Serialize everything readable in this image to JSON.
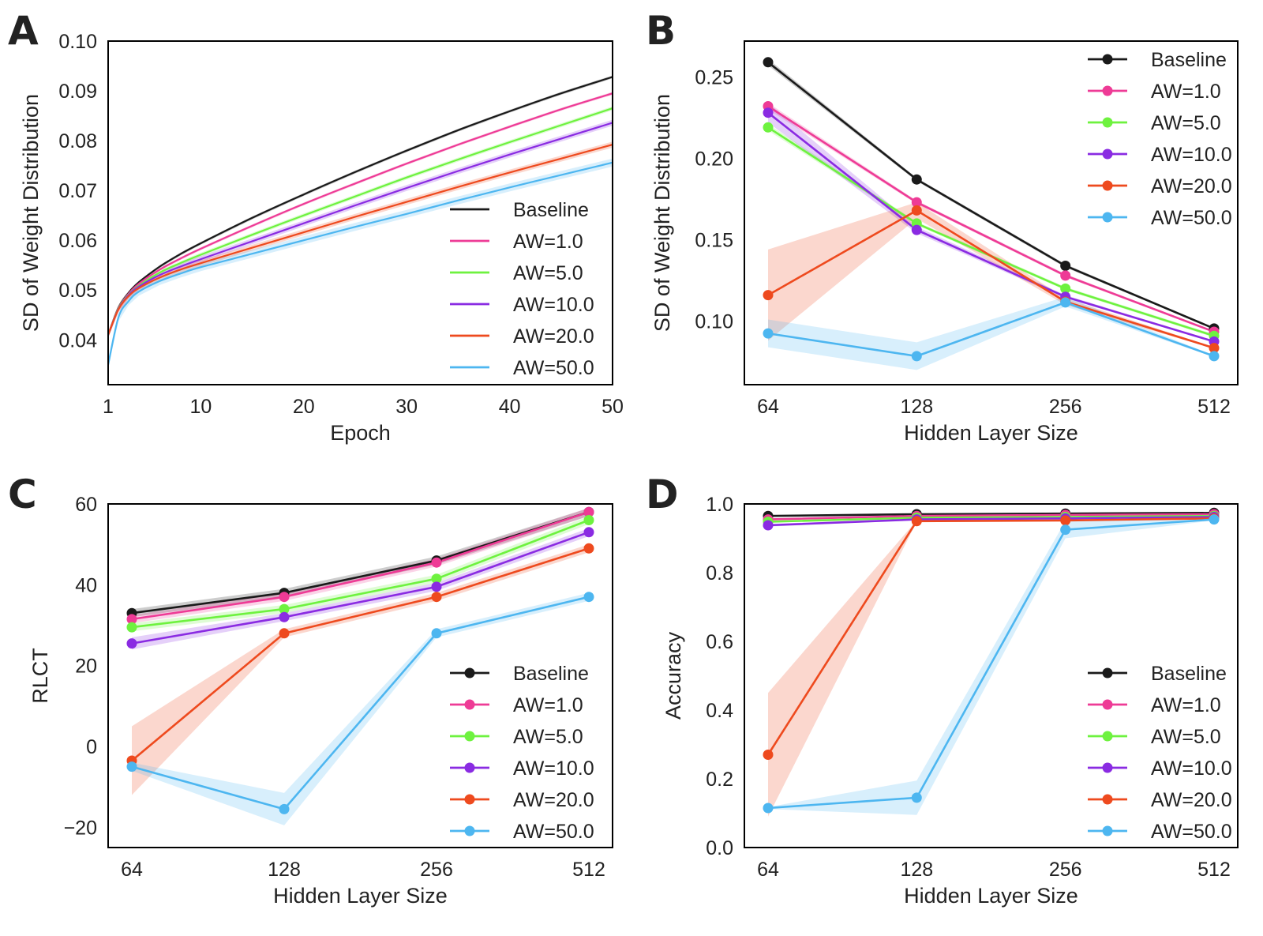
{
  "series_styles": [
    {
      "name": "Baseline",
      "color": "#1a1a1a"
    },
    {
      "name": "AW=1.0",
      "color": "#ee3b96"
    },
    {
      "name": "AW=5.0",
      "color": "#6ef23f"
    },
    {
      "name": "AW=10.0",
      "color": "#8a2be2"
    },
    {
      "name": "AW=20.0",
      "color": "#ee4a1e"
    },
    {
      "name": "AW=50.0",
      "color": "#4db6f0"
    }
  ],
  "chart_data": [
    {
      "panel": "A",
      "type": "line",
      "xlabel": "Epoch",
      "ylabel": "SD of Weight Distribution",
      "xlim": [
        1,
        50
      ],
      "ylim": [
        0.031,
        0.1
      ],
      "xticks": [
        1,
        10,
        20,
        30,
        40,
        50
      ],
      "yticks": [
        0.04,
        0.05,
        0.06,
        0.07,
        0.08,
        0.09,
        0.1
      ],
      "ytick_labels": [
        "0.04",
        "0.05",
        "0.06",
        "0.07",
        "0.08",
        "0.09",
        "0.10"
      ],
      "markers": false,
      "legend": "lower-right",
      "x": [
        1,
        2,
        3,
        4,
        6,
        8,
        10,
        15,
        20,
        25,
        30,
        35,
        40,
        45,
        50
      ],
      "series": [
        {
          "name": "Baseline",
          "values": [
            0.041,
            0.0465,
            0.0495,
            0.0516,
            0.0547,
            0.0572,
            0.0594,
            0.0645,
            0.0692,
            0.0737,
            0.078,
            0.0821,
            0.0859,
            0.0895,
            0.0928
          ],
          "band": 0.0003
        },
        {
          "name": "AW=1.0",
          "values": [
            0.041,
            0.0464,
            0.0493,
            0.0513,
            0.0541,
            0.0563,
            0.0583,
            0.0629,
            0.0673,
            0.0714,
            0.0754,
            0.0792,
            0.0828,
            0.0863,
            0.0895
          ],
          "band": 0.0003
        },
        {
          "name": "AW=5.0",
          "values": [
            0.041,
            0.0463,
            0.0491,
            0.0509,
            0.0535,
            0.0554,
            0.0571,
            0.0611,
            0.065,
            0.0688,
            0.0726,
            0.0762,
            0.0797,
            0.0831,
            0.0865
          ],
          "band": 0.0004
        },
        {
          "name": "AW=10.0",
          "values": [
            0.041,
            0.0462,
            0.049,
            0.0507,
            0.053,
            0.0547,
            0.0562,
            0.0598,
            0.0634,
            0.067,
            0.0705,
            0.0739,
            0.0772,
            0.0804,
            0.0836
          ],
          "band": 0.0006
        },
        {
          "name": "AW=20.0",
          "values": [
            0.041,
            0.0461,
            0.0488,
            0.0504,
            0.0525,
            0.0541,
            0.0554,
            0.0585,
            0.0616,
            0.0647,
            0.0677,
            0.0707,
            0.0736,
            0.0764,
            0.0792
          ],
          "band": 0.0006
        },
        {
          "name": "AW=50.0",
          "values": [
            0.035,
            0.0445,
            0.0478,
            0.0497,
            0.0518,
            0.0533,
            0.0546,
            0.0573,
            0.06,
            0.0627,
            0.0653,
            0.068,
            0.0706,
            0.0731,
            0.0756
          ],
          "band": 0.0008
        }
      ]
    },
    {
      "panel": "B",
      "type": "line",
      "xlabel": "Hidden Layer Size",
      "ylabel": "SD of Weight Distribution",
      "categories": [
        "64",
        "128",
        "256",
        "512"
      ],
      "ylim": [
        0.061,
        0.272
      ],
      "yticks": [
        0.1,
        0.15,
        0.2,
        0.25
      ],
      "ytick_labels": [
        "0.10",
        "0.15",
        "0.20",
        "0.25"
      ],
      "markers": true,
      "legend": "top-right",
      "series": [
        {
          "name": "Baseline",
          "values": [
            0.259,
            0.187,
            0.134,
            0.0955
          ],
          "lower": [
            0.257,
            0.186,
            0.133,
            0.095
          ],
          "upper": [
            0.261,
            0.188,
            0.135,
            0.096
          ]
        },
        {
          "name": "AW=1.0",
          "values": [
            0.232,
            0.173,
            0.128,
            0.0935
          ],
          "lower": [
            0.23,
            0.172,
            0.127,
            0.093
          ],
          "upper": [
            0.234,
            0.174,
            0.129,
            0.094
          ]
        },
        {
          "name": "AW=5.0",
          "values": [
            0.219,
            0.16,
            0.12,
            0.091
          ],
          "lower": [
            0.217,
            0.159,
            0.119,
            0.09
          ],
          "upper": [
            0.221,
            0.161,
            0.121,
            0.092
          ]
        },
        {
          "name": "AW=10.0",
          "values": [
            0.228,
            0.156,
            0.115,
            0.0875
          ],
          "lower": [
            0.222,
            0.154,
            0.114,
            0.087
          ],
          "upper": [
            0.234,
            0.158,
            0.116,
            0.088
          ]
        },
        {
          "name": "AW=20.0",
          "values": [
            0.116,
            0.168,
            0.112,
            0.0835
          ],
          "lower": [
            0.088,
            0.163,
            0.11,
            0.083
          ],
          "upper": [
            0.144,
            0.173,
            0.114,
            0.084
          ]
        },
        {
          "name": "AW=50.0",
          "values": [
            0.0925,
            0.0785,
            0.1115,
            0.0785
          ],
          "lower": [
            0.084,
            0.07,
            0.109,
            0.078
          ],
          "upper": [
            0.101,
            0.087,
            0.115,
            0.079
          ]
        }
      ]
    },
    {
      "panel": "C",
      "type": "line",
      "xlabel": "Hidden Layer Size",
      "ylabel": "RLCT",
      "categories": [
        "64",
        "128",
        "256",
        "512"
      ],
      "ylim": [
        -25,
        60
      ],
      "yticks": [
        -20,
        0,
        20,
        40,
        60
      ],
      "ytick_labels": [
        "−20",
        "0",
        "20",
        "40",
        "60"
      ],
      "markers": true,
      "legend": "lower-right",
      "series": [
        {
          "name": "Baseline",
          "values": [
            33,
            38,
            46,
            58
          ],
          "lower": [
            32,
            37,
            45,
            57
          ],
          "upper": [
            34,
            39,
            47,
            59
          ]
        },
        {
          "name": "AW=1.0",
          "values": [
            31.5,
            37,
            45.5,
            58
          ],
          "lower": [
            30.5,
            36,
            44.5,
            57
          ],
          "upper": [
            32.5,
            38,
            46.5,
            59
          ]
        },
        {
          "name": "AW=5.0",
          "values": [
            29.5,
            34,
            41.5,
            56
          ],
          "lower": [
            28.5,
            33,
            40.5,
            55
          ],
          "upper": [
            30.5,
            35,
            42.5,
            57
          ]
        },
        {
          "name": "AW=10.0",
          "values": [
            25.5,
            32,
            39.5,
            53
          ],
          "lower": [
            24,
            31,
            38.5,
            52
          ],
          "upper": [
            27,
            33,
            40.5,
            54
          ]
        },
        {
          "name": "AW=20.0",
          "values": [
            -3.5,
            28,
            37,
            49
          ],
          "lower": [
            -12,
            27,
            36,
            48
          ],
          "upper": [
            5,
            29,
            38,
            50
          ]
        },
        {
          "name": "AW=50.0",
          "values": [
            -5,
            -15.5,
            28,
            37
          ],
          "lower": [
            -6,
            -19.5,
            27,
            36
          ],
          "upper": [
            -4,
            -11.5,
            29,
            38
          ]
        }
      ]
    },
    {
      "panel": "D",
      "type": "line",
      "xlabel": "Hidden Layer Size",
      "ylabel": "Accuracy",
      "categories": [
        "64",
        "128",
        "256",
        "512"
      ],
      "ylim": [
        0,
        1
      ],
      "yticks": [
        0,
        0.2,
        0.4,
        0.6,
        0.8,
        1
      ],
      "ytick_labels": [
        "0.0",
        "0.2",
        "0.4",
        "0.6",
        "0.8",
        "1.0"
      ],
      "markers": true,
      "legend": "lower-right",
      "series": [
        {
          "name": "Baseline",
          "values": [
            0.965,
            0.97,
            0.972,
            0.974
          ],
          "lower": [
            0.963,
            0.968,
            0.97,
            0.972
          ],
          "upper": [
            0.967,
            0.972,
            0.974,
            0.976
          ]
        },
        {
          "name": "AW=1.0",
          "values": [
            0.955,
            0.965,
            0.968,
            0.97
          ],
          "lower": [
            0.953,
            0.963,
            0.966,
            0.968
          ],
          "upper": [
            0.957,
            0.967,
            0.97,
            0.972
          ]
        },
        {
          "name": "AW=5.0",
          "values": [
            0.948,
            0.96,
            0.962,
            0.965
          ],
          "lower": [
            0.946,
            0.958,
            0.96,
            0.963
          ],
          "upper": [
            0.95,
            0.962,
            0.964,
            0.967
          ]
        },
        {
          "name": "AW=10.0",
          "values": [
            0.938,
            0.955,
            0.958,
            0.962
          ],
          "lower": [
            0.934,
            0.953,
            0.956,
            0.96
          ],
          "upper": [
            0.942,
            0.957,
            0.96,
            0.964
          ]
        },
        {
          "name": "AW=20.0",
          "values": [
            0.27,
            0.95,
            0.952,
            0.958
          ],
          "lower": [
            0.09,
            0.948,
            0.95,
            0.956
          ],
          "upper": [
            0.45,
            0.952,
            0.954,
            0.96
          ]
        },
        {
          "name": "AW=50.0",
          "values": [
            0.115,
            0.145,
            0.925,
            0.955
          ],
          "lower": [
            0.112,
            0.095,
            0.9,
            0.952
          ],
          "upper": [
            0.118,
            0.195,
            0.95,
            0.958
          ]
        }
      ]
    }
  ]
}
